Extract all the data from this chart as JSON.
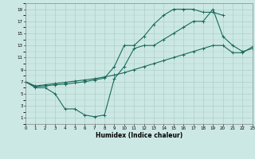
{
  "xlabel": "Humidex (Indice chaleur)",
  "bg_color": "#cce8e5",
  "grid_color": "#b0ceca",
  "line_color": "#1a6b5a",
  "xlim": [
    0,
    23
  ],
  "ylim": [
    0,
    20
  ],
  "xticks": [
    0,
    1,
    2,
    3,
    4,
    5,
    6,
    7,
    8,
    9,
    10,
    11,
    12,
    13,
    14,
    15,
    16,
    17,
    18,
    19,
    20,
    21,
    22,
    23
  ],
  "yticks": [
    1,
    3,
    5,
    7,
    9,
    11,
    13,
    15,
    17,
    19
  ],
  "line_upper_x": [
    0,
    1,
    2,
    3,
    4,
    5,
    6,
    7,
    8,
    9,
    10,
    11,
    12,
    13,
    14,
    15,
    16,
    17,
    18,
    19,
    20
  ],
  "line_upper_y": [
    7,
    6.2,
    6.3,
    6.5,
    6.6,
    6.8,
    7.0,
    7.3,
    7.6,
    9.5,
    13.0,
    13.0,
    14.5,
    16.5,
    18.0,
    19.0,
    19.0,
    19.0,
    18.5,
    18.5,
    18.0
  ],
  "line_mid_x": [
    0,
    1,
    2,
    3,
    4,
    5,
    6,
    7,
    8,
    9,
    10,
    11,
    12,
    13,
    14,
    15,
    16,
    17,
    18,
    19,
    20,
    21,
    22,
    23
  ],
  "line_mid_y": [
    7,
    6.3,
    6.5,
    6.7,
    6.9,
    7.1,
    7.3,
    7.5,
    7.8,
    8.1,
    8.5,
    9.0,
    9.5,
    10.0,
    10.5,
    11.0,
    11.5,
    12.0,
    12.5,
    13.0,
    13.0,
    11.8,
    11.8,
    12.8
  ],
  "line_lower_x": [
    0,
    1,
    2,
    3,
    4,
    5,
    6,
    7,
    8,
    9,
    10,
    11,
    12,
    13,
    14,
    15,
    16,
    17,
    18,
    19,
    20,
    21,
    22,
    23
  ],
  "line_lower_y": [
    7,
    6.0,
    6.0,
    5.0,
    2.5,
    2.5,
    1.5,
    1.2,
    1.5,
    7.5,
    9.5,
    12.5,
    13.0,
    13.0,
    14.0,
    15.0,
    16.0,
    17.0,
    17.0,
    19.0,
    14.5,
    13.0,
    12.0,
    12.5
  ]
}
